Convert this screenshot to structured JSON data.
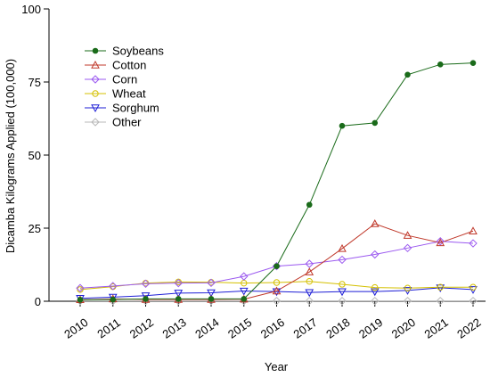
{
  "chart_data": {
    "type": "line",
    "xlabel": "Year",
    "ylabel": "Dicamba Kilograms Applied (100,000)",
    "x": [
      2010,
      2011,
      2012,
      2013,
      2014,
      2015,
      2016,
      2017,
      2018,
      2019,
      2020,
      2021,
      2022
    ],
    "x_tick_labels": [
      "2010",
      "2011",
      "2012",
      "2013",
      "2014",
      "2015",
      "2016",
      "2017",
      "2018",
      "2019",
      "2020",
      "2021",
      "2022"
    ],
    "ylim": [
      0,
      100
    ],
    "y_ticks": [
      0,
      25,
      50,
      75,
      100
    ],
    "y_tick_labels": [
      "0",
      "25",
      "50",
      "75",
      "100"
    ],
    "grid": false,
    "legend_position": "top-left",
    "series": [
      {
        "name": "Soybeans",
        "color": "#1a6b1a",
        "marker": "filled-circle",
        "values": [
          0.5,
          0.6,
          0.8,
          0.8,
          0.8,
          0.8,
          12,
          33,
          60,
          61,
          77.5,
          81,
          81.5
        ]
      },
      {
        "name": "Cotton",
        "color": "#c0392b",
        "marker": "triangle-up",
        "values": [
          0.5,
          0.8,
          0.6,
          0.6,
          0.6,
          0.7,
          3.5,
          10,
          18,
          26.5,
          22.5,
          20,
          24
        ]
      },
      {
        "name": "Corn",
        "color": "#9b59f0",
        "marker": "diamond",
        "values": [
          4.5,
          5.2,
          6,
          6.2,
          6.3,
          8.5,
          12,
          12.8,
          14.2,
          16,
          18.2,
          20.5,
          19.8
        ]
      },
      {
        "name": "Wheat",
        "color": "#d4c000",
        "marker": "circle",
        "values": [
          4,
          5,
          6.2,
          6.6,
          6.5,
          6.2,
          6.4,
          6.8,
          5.8,
          4.7,
          4.5,
          4.8,
          4.8
        ]
      },
      {
        "name": "Sorghum",
        "color": "#1f1fd6",
        "marker": "triangle-down",
        "values": [
          1,
          1.4,
          1.9,
          2.8,
          2.9,
          3.5,
          3.3,
          3,
          3.3,
          3.3,
          3.7,
          4.6,
          4
        ]
      },
      {
        "name": "Other",
        "color": "#b8b8b8",
        "marker": "diamond",
        "values": [
          0.1,
          0.1,
          0.1,
          0.1,
          0.1,
          0.1,
          0.1,
          0.1,
          0.1,
          0.1,
          0.1,
          0.1,
          0.1
        ]
      }
    ]
  }
}
